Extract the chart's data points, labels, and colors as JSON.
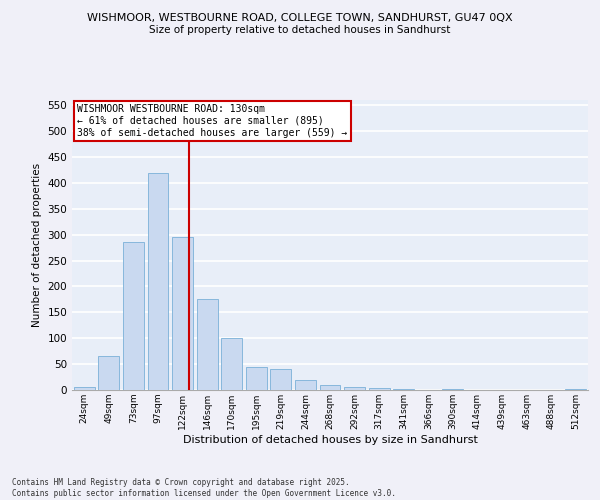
{
  "title_line1": "WISHMOOR, WESTBOURNE ROAD, COLLEGE TOWN, SANDHURST, GU47 0QX",
  "title_line2": "Size of property relative to detached houses in Sandhurst",
  "xlabel": "Distribution of detached houses by size in Sandhurst",
  "ylabel": "Number of detached properties",
  "bins": [
    "24sqm",
    "49sqm",
    "73sqm",
    "97sqm",
    "122sqm",
    "146sqm",
    "170sqm",
    "195sqm",
    "219sqm",
    "244sqm",
    "268sqm",
    "292sqm",
    "317sqm",
    "341sqm",
    "366sqm",
    "390sqm",
    "414sqm",
    "439sqm",
    "463sqm",
    "488sqm",
    "512sqm"
  ],
  "bar_values": [
    5,
    65,
    285,
    420,
    295,
    175,
    100,
    45,
    40,
    20,
    10,
    5,
    3,
    1,
    0,
    1,
    0,
    0,
    0,
    0,
    1
  ],
  "bar_color": "#c9d9f0",
  "bar_edge_color": "#7ab0d8",
  "background_color": "#e8eef8",
  "grid_color": "#ffffff",
  "property_line_x": 4.25,
  "annotation_title": "WISHMOOR WESTBOURNE ROAD: 130sqm",
  "annotation_line1": "← 61% of detached houses are smaller (895)",
  "annotation_line2": "38% of semi-detached houses are larger (559) →",
  "annotation_box_color": "#ffffff",
  "annotation_box_edge": "#cc0000",
  "property_line_color": "#cc0000",
  "ylim": [
    0,
    560
  ],
  "yticks": [
    0,
    50,
    100,
    150,
    200,
    250,
    300,
    350,
    400,
    450,
    500,
    550
  ],
  "footer_line1": "Contains HM Land Registry data © Crown copyright and database right 2025.",
  "footer_line2": "Contains public sector information licensed under the Open Government Licence v3.0.",
  "fig_width": 6.0,
  "fig_height": 5.0,
  "dpi": 100
}
